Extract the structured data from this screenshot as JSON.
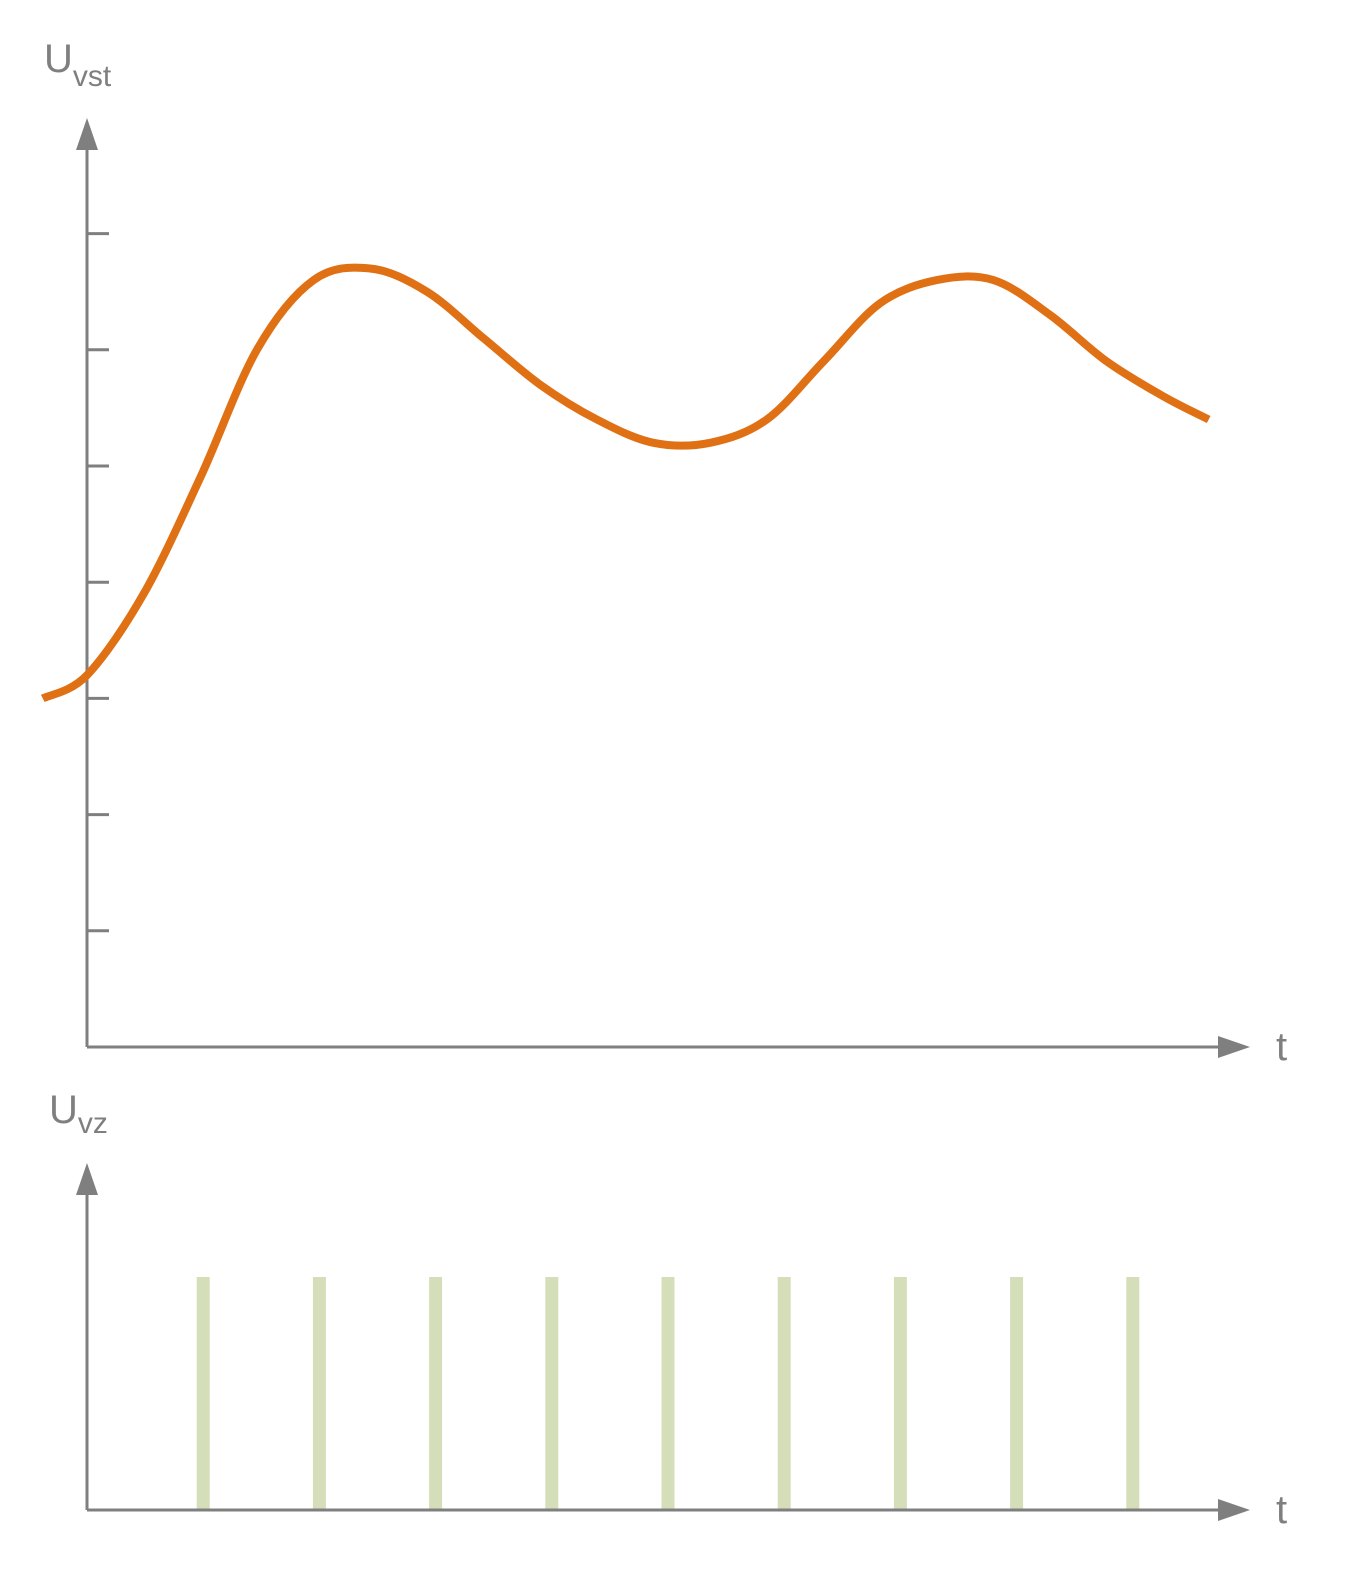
{
  "colors": {
    "axis": "#7f7f7f",
    "curve": "#e07014",
    "pulse": "#d4deb8",
    "background": "#ffffff"
  },
  "chart_data": [
    {
      "type": "line",
      "ylabel": {
        "main": "U",
        "sub": "vst"
      },
      "xlabel": "t",
      "y_ticks_count": 7,
      "ylim": [
        0,
        7.6
      ],
      "xlim": [
        0,
        10
      ],
      "grid": false,
      "series": [
        {
          "x": [
            -0.39,
            0.0,
            0.5,
            1.0,
            1.5,
            2.0,
            2.5,
            3.0,
            3.5,
            4.0,
            4.5,
            5.0,
            5.5,
            6.0,
            6.5,
            7.0,
            7.5,
            8.0,
            8.5,
            9.0,
            9.5,
            9.9
          ],
          "y": [
            3.0,
            3.2,
            3.9,
            4.9,
            6.0,
            6.6,
            6.7,
            6.5,
            6.1,
            5.7,
            5.4,
            5.2,
            5.2,
            5.4,
            5.9,
            6.4,
            6.6,
            6.6,
            6.3,
            5.9,
            5.6,
            5.4
          ]
        }
      ]
    },
    {
      "type": "bar",
      "ylabel": {
        "main": "U",
        "sub": "vz"
      },
      "xlabel": "t",
      "ylim": [
        0,
        1.2
      ],
      "xlim": [
        0,
        10
      ],
      "grid": false,
      "x": [
        1,
        2,
        3,
        4,
        5,
        6,
        7,
        8,
        9
      ],
      "values": [
        1,
        1,
        1,
        1,
        1,
        1,
        1,
        1,
        1
      ]
    }
  ]
}
